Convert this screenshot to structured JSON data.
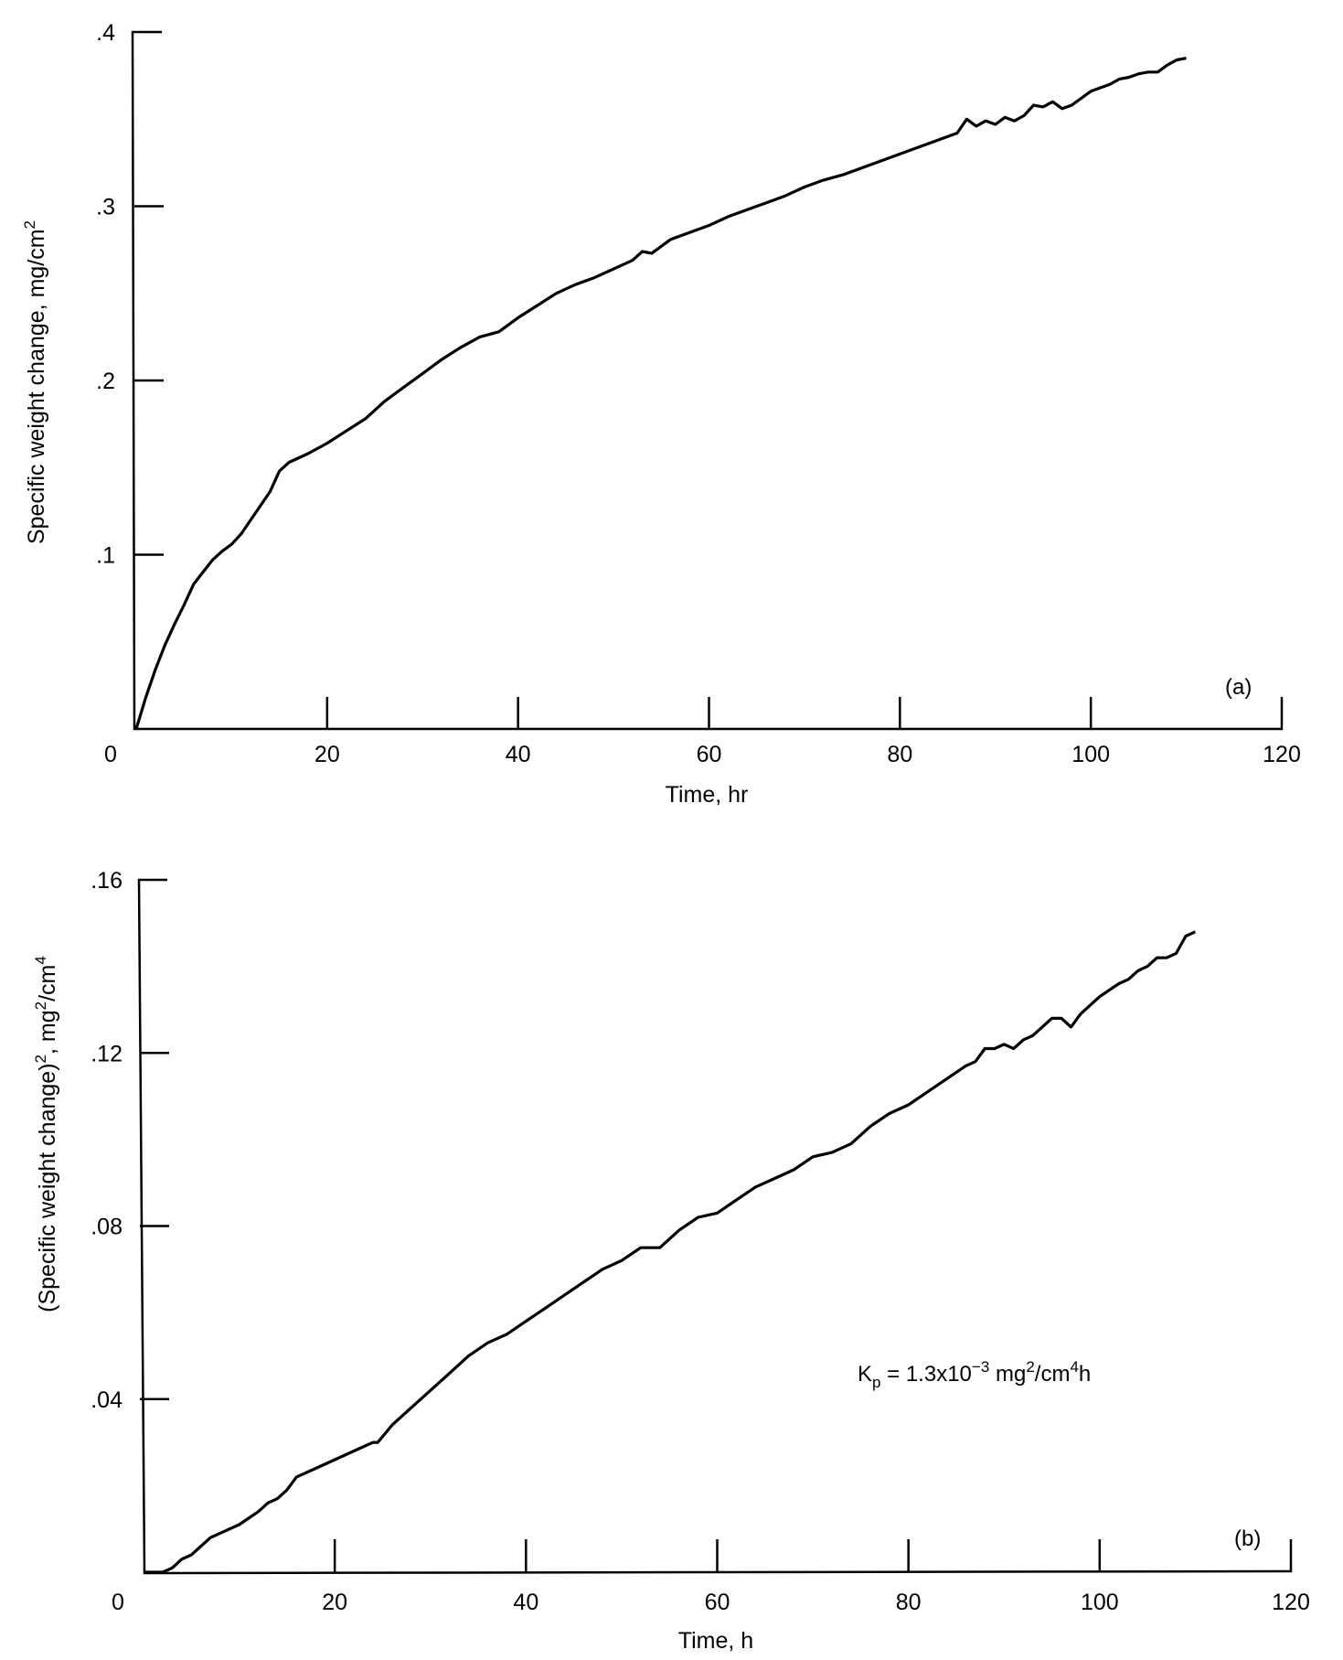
{
  "chart_data": [
    {
      "type": "line",
      "panel_label": "(a)",
      "title": "",
      "xlabel": "Time, hr",
      "ylabel": "Specific weight change, mg/cm",
      "ylabel_sup": "2",
      "xlim": [
        0,
        120
      ],
      "ylim": [
        0,
        0.4
      ],
      "grid": false,
      "x_ticks": [
        "0",
        "20",
        "40",
        "60",
        "80",
        "100",
        "120"
      ],
      "y_ticks": [
        ".1",
        ".2",
        ".3",
        ".4"
      ],
      "series": [
        {
          "name": "weight change",
          "x": [
            0,
            1,
            2,
            3,
            4,
            5,
            6,
            7,
            8,
            9,
            10,
            11,
            12,
            13,
            14,
            15,
            16,
            18,
            20,
            22,
            24,
            26,
            28,
            30,
            32,
            34,
            36,
            38,
            40,
            42,
            44,
            46,
            48,
            50,
            52,
            53,
            54,
            56,
            58,
            60,
            62,
            64,
            66,
            68,
            70,
            72,
            74,
            76,
            78,
            80,
            82,
            84,
            86,
            87,
            88,
            89,
            90,
            91,
            92,
            93,
            94,
            95,
            96,
            97,
            98,
            100,
            102,
            103,
            104,
            105,
            106,
            107,
            108,
            109,
            110
          ],
          "values": [
            0,
            0.018,
            0.034,
            0.048,
            0.06,
            0.071,
            0.083,
            0.09,
            0.097,
            0.102,
            0.106,
            0.112,
            0.12,
            0.128,
            0.136,
            0.148,
            0.153,
            0.158,
            0.164,
            0.171,
            0.178,
            0.188,
            0.196,
            0.204,
            0.212,
            0.219,
            0.225,
            0.228,
            0.236,
            0.243,
            0.25,
            0.255,
            0.259,
            0.264,
            0.269,
            0.274,
            0.273,
            0.281,
            0.285,
            0.289,
            0.294,
            0.298,
            0.302,
            0.306,
            0.311,
            0.315,
            0.318,
            0.322,
            0.326,
            0.33,
            0.334,
            0.338,
            0.342,
            0.35,
            0.346,
            0.349,
            0.347,
            0.351,
            0.349,
            0.352,
            0.358,
            0.357,
            0.36,
            0.356,
            0.358,
            0.366,
            0.37,
            0.373,
            0.374,
            0.376,
            0.377,
            0.377,
            0.381,
            0.384,
            0.385
          ]
        }
      ]
    },
    {
      "type": "line",
      "panel_label": "(b)",
      "title": "",
      "xlabel": "Time, h",
      "ylabel": "(Specific weight change)",
      "ylabel_sup": "2",
      "ylabel_units": ", mg",
      "ylabel_units_sup": "2",
      "ylabel_units_tail": "/cm",
      "ylabel_units_tail_sup": "4",
      "xlim": [
        0,
        120
      ],
      "ylim": [
        0,
        0.16
      ],
      "grid": false,
      "x_ticks": [
        "0",
        "20",
        "40",
        "60",
        "80",
        "100",
        "120"
      ],
      "y_ticks": [
        ".04",
        ".08",
        ".12",
        ".16"
      ],
      "annotation": {
        "prefix": "K",
        "sub": "p",
        "eq": " = 1.3x10",
        "exp": "−3",
        "unit1": " mg",
        "unit1_sup": "2",
        "unit2": "/cm",
        "unit2_sup": "4",
        "unit3": "h"
      },
      "series": [
        {
          "name": "weight change squared",
          "x": [
            0,
            2,
            3,
            4,
            5,
            6,
            7,
            8,
            10,
            12,
            13,
            14,
            15,
            16,
            18,
            20,
            22,
            24,
            24.5,
            26,
            28,
            30,
            32,
            34,
            36,
            38,
            40,
            42,
            44,
            46,
            48,
            50,
            52,
            53,
            54,
            56,
            58,
            60,
            62,
            64,
            66,
            68,
            70,
            72,
            74,
            76,
            78,
            80,
            82,
            84,
            86,
            87,
            88,
            89,
            90,
            91,
            92,
            93,
            94,
            95,
            96,
            97,
            98,
            100,
            102,
            103,
            104,
            105,
            106,
            107,
            108,
            109,
            110
          ],
          "values": [
            0,
            0,
            0.001,
            0.003,
            0.004,
            0.006,
            0.008,
            0.009,
            0.011,
            0.014,
            0.016,
            0.017,
            0.019,
            0.022,
            0.024,
            0.026,
            0.028,
            0.03,
            0.03,
            0.034,
            0.038,
            0.042,
            0.046,
            0.05,
            0.053,
            0.055,
            0.058,
            0.061,
            0.064,
            0.067,
            0.07,
            0.072,
            0.075,
            0.075,
            0.075,
            0.079,
            0.082,
            0.083,
            0.086,
            0.089,
            0.091,
            0.093,
            0.096,
            0.097,
            0.099,
            0.103,
            0.106,
            0.108,
            0.111,
            0.114,
            0.117,
            0.118,
            0.121,
            0.121,
            0.122,
            0.121,
            0.123,
            0.124,
            0.126,
            0.128,
            0.128,
            0.126,
            0.129,
            0.133,
            0.136,
            0.137,
            0.139,
            0.14,
            0.142,
            0.142,
            0.143,
            0.147,
            0.148
          ]
        }
      ]
    }
  ]
}
